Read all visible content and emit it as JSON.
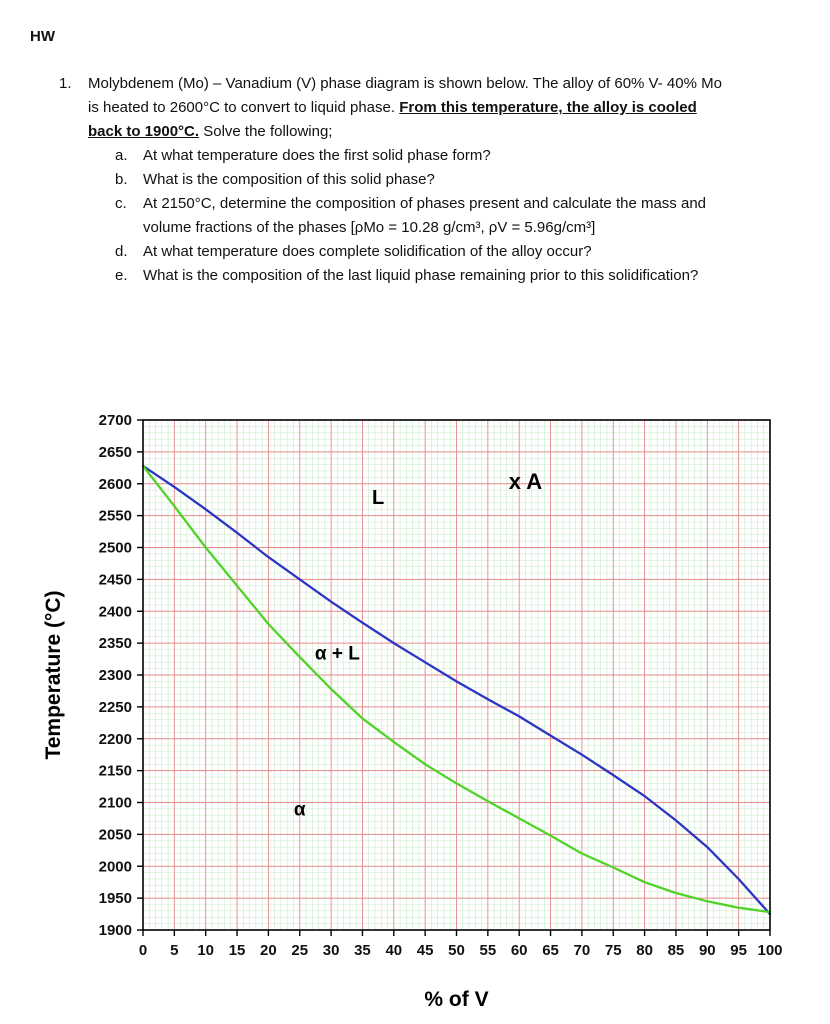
{
  "page": {
    "header": "HW"
  },
  "problem": {
    "number": "1.",
    "intro_part1": "Molybdenem (Mo) – Vanadium (V) phase diagram is shown below. The alloy of 60% V- 40% Mo is heated to 2600°C to convert to liquid phase. ",
    "intro_emphasis": "From this temperature, the alloy is cooled back to 1900°C.",
    "intro_part2": " Solve the following;",
    "subquestions": [
      {
        "label": "a.",
        "text": "At what temperature does the first solid phase form?"
      },
      {
        "label": "b.",
        "text": "What is the composition of this solid phase?"
      },
      {
        "label": "c.",
        "text": "At 2150°C, determine the composition of phases present and calculate the mass and volume fractions of the phases [ρMo = 10.28 g/cm³, ρV = 5.96g/cm³]"
      },
      {
        "label": "d.",
        "text": "At what temperature does complete solidification of the alloy occur?"
      },
      {
        "label": "e.",
        "text": "What is the composition of the last liquid phase remaining prior to this solidification?"
      }
    ]
  },
  "chart_data": {
    "type": "line",
    "title": "",
    "xlabel": "% of V",
    "ylabel": "Temperature (°C)",
    "xlim": [
      0,
      100
    ],
    "ylim": [
      1900,
      2700
    ],
    "x_tick_step": 5,
    "y_tick_step": 50,
    "x_ticks": [
      0,
      5,
      10,
      15,
      20,
      25,
      30,
      35,
      40,
      45,
      50,
      55,
      60,
      65,
      70,
      75,
      80,
      85,
      90,
      95,
      100
    ],
    "y_ticks": [
      1900,
      1950,
      2000,
      2050,
      2100,
      2150,
      2200,
      2250,
      2300,
      2350,
      2400,
      2450,
      2500,
      2550,
      2600,
      2650,
      2700
    ],
    "grid": {
      "major_color": "#e48a8a",
      "minor_color": "#c9e9c9",
      "minor_x_step": 1,
      "minor_y_step": 10
    },
    "series": [
      {
        "name": "liquidus",
        "color": "#2b35c4",
        "x": [
          0,
          5,
          10,
          15,
          20,
          25,
          30,
          35,
          40,
          45,
          50,
          55,
          60,
          65,
          70,
          75,
          80,
          85,
          90,
          95,
          100
        ],
        "y": [
          2628,
          2595,
          2560,
          2523,
          2485,
          2450,
          2415,
          2382,
          2350,
          2320,
          2290,
          2262,
          2235,
          2205,
          2175,
          2143,
          2110,
          2072,
          2030,
          1980,
          1925
        ]
      },
      {
        "name": "solidus",
        "color": "#4fd328",
        "x": [
          0,
          5,
          10,
          15,
          20,
          25,
          30,
          35,
          40,
          45,
          50,
          55,
          60,
          65,
          70,
          75,
          80,
          85,
          90,
          95,
          100
        ],
        "y": [
          2628,
          2565,
          2500,
          2440,
          2380,
          2328,
          2278,
          2232,
          2195,
          2160,
          2130,
          2102,
          2075,
          2048,
          2020,
          1998,
          1975,
          1958,
          1945,
          1935,
          1928
        ]
      }
    ],
    "annotations": [
      {
        "text": "L",
        "x": 37.5,
        "y": 2568,
        "size": 20,
        "weight": "bold"
      },
      {
        "text": "x A",
        "x": 61,
        "y": 2592,
        "size": 22,
        "weight": "bold"
      },
      {
        "text": "α + L",
        "x": 31,
        "y": 2324,
        "size": 19,
        "weight": "bold"
      },
      {
        "text": "α",
        "x": 25,
        "y": 2080,
        "size": 19,
        "weight": "bold"
      }
    ]
  }
}
